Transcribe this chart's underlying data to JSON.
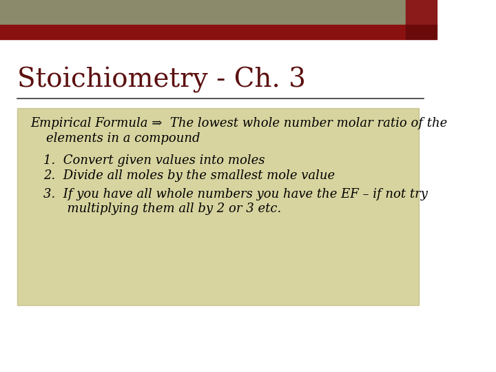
{
  "title": "Stoichiometry - Ch. 3",
  "title_color": "#5c1010",
  "title_fontsize": 28,
  "bg_color": "#ffffff",
  "header_bar_color1": "#8b8b6b",
  "header_bar_color2": "#8b1a1a",
  "red_bar_color": "#8b1010",
  "red_bar_color2": "#6b0a0a",
  "box_bg_color": "#d8d4a0",
  "box_border_color": "#c8c490",
  "line_color": "#333333",
  "body_text_color": "#000000",
  "empirical_line1": "Empirical Formula ⇒  The lowest whole number molar ratio of the",
  "empirical_line2": "    elements in a compound",
  "items": [
    "1.  Convert given values into moles",
    "2.  Divide all moles by the smallest mole value",
    "3.  If you have all whole numbers you have the EF – if not try",
    "      multiplying them all by 2 or 3 etc."
  ],
  "item_fontsize": 13,
  "empirical_fontsize": 13
}
